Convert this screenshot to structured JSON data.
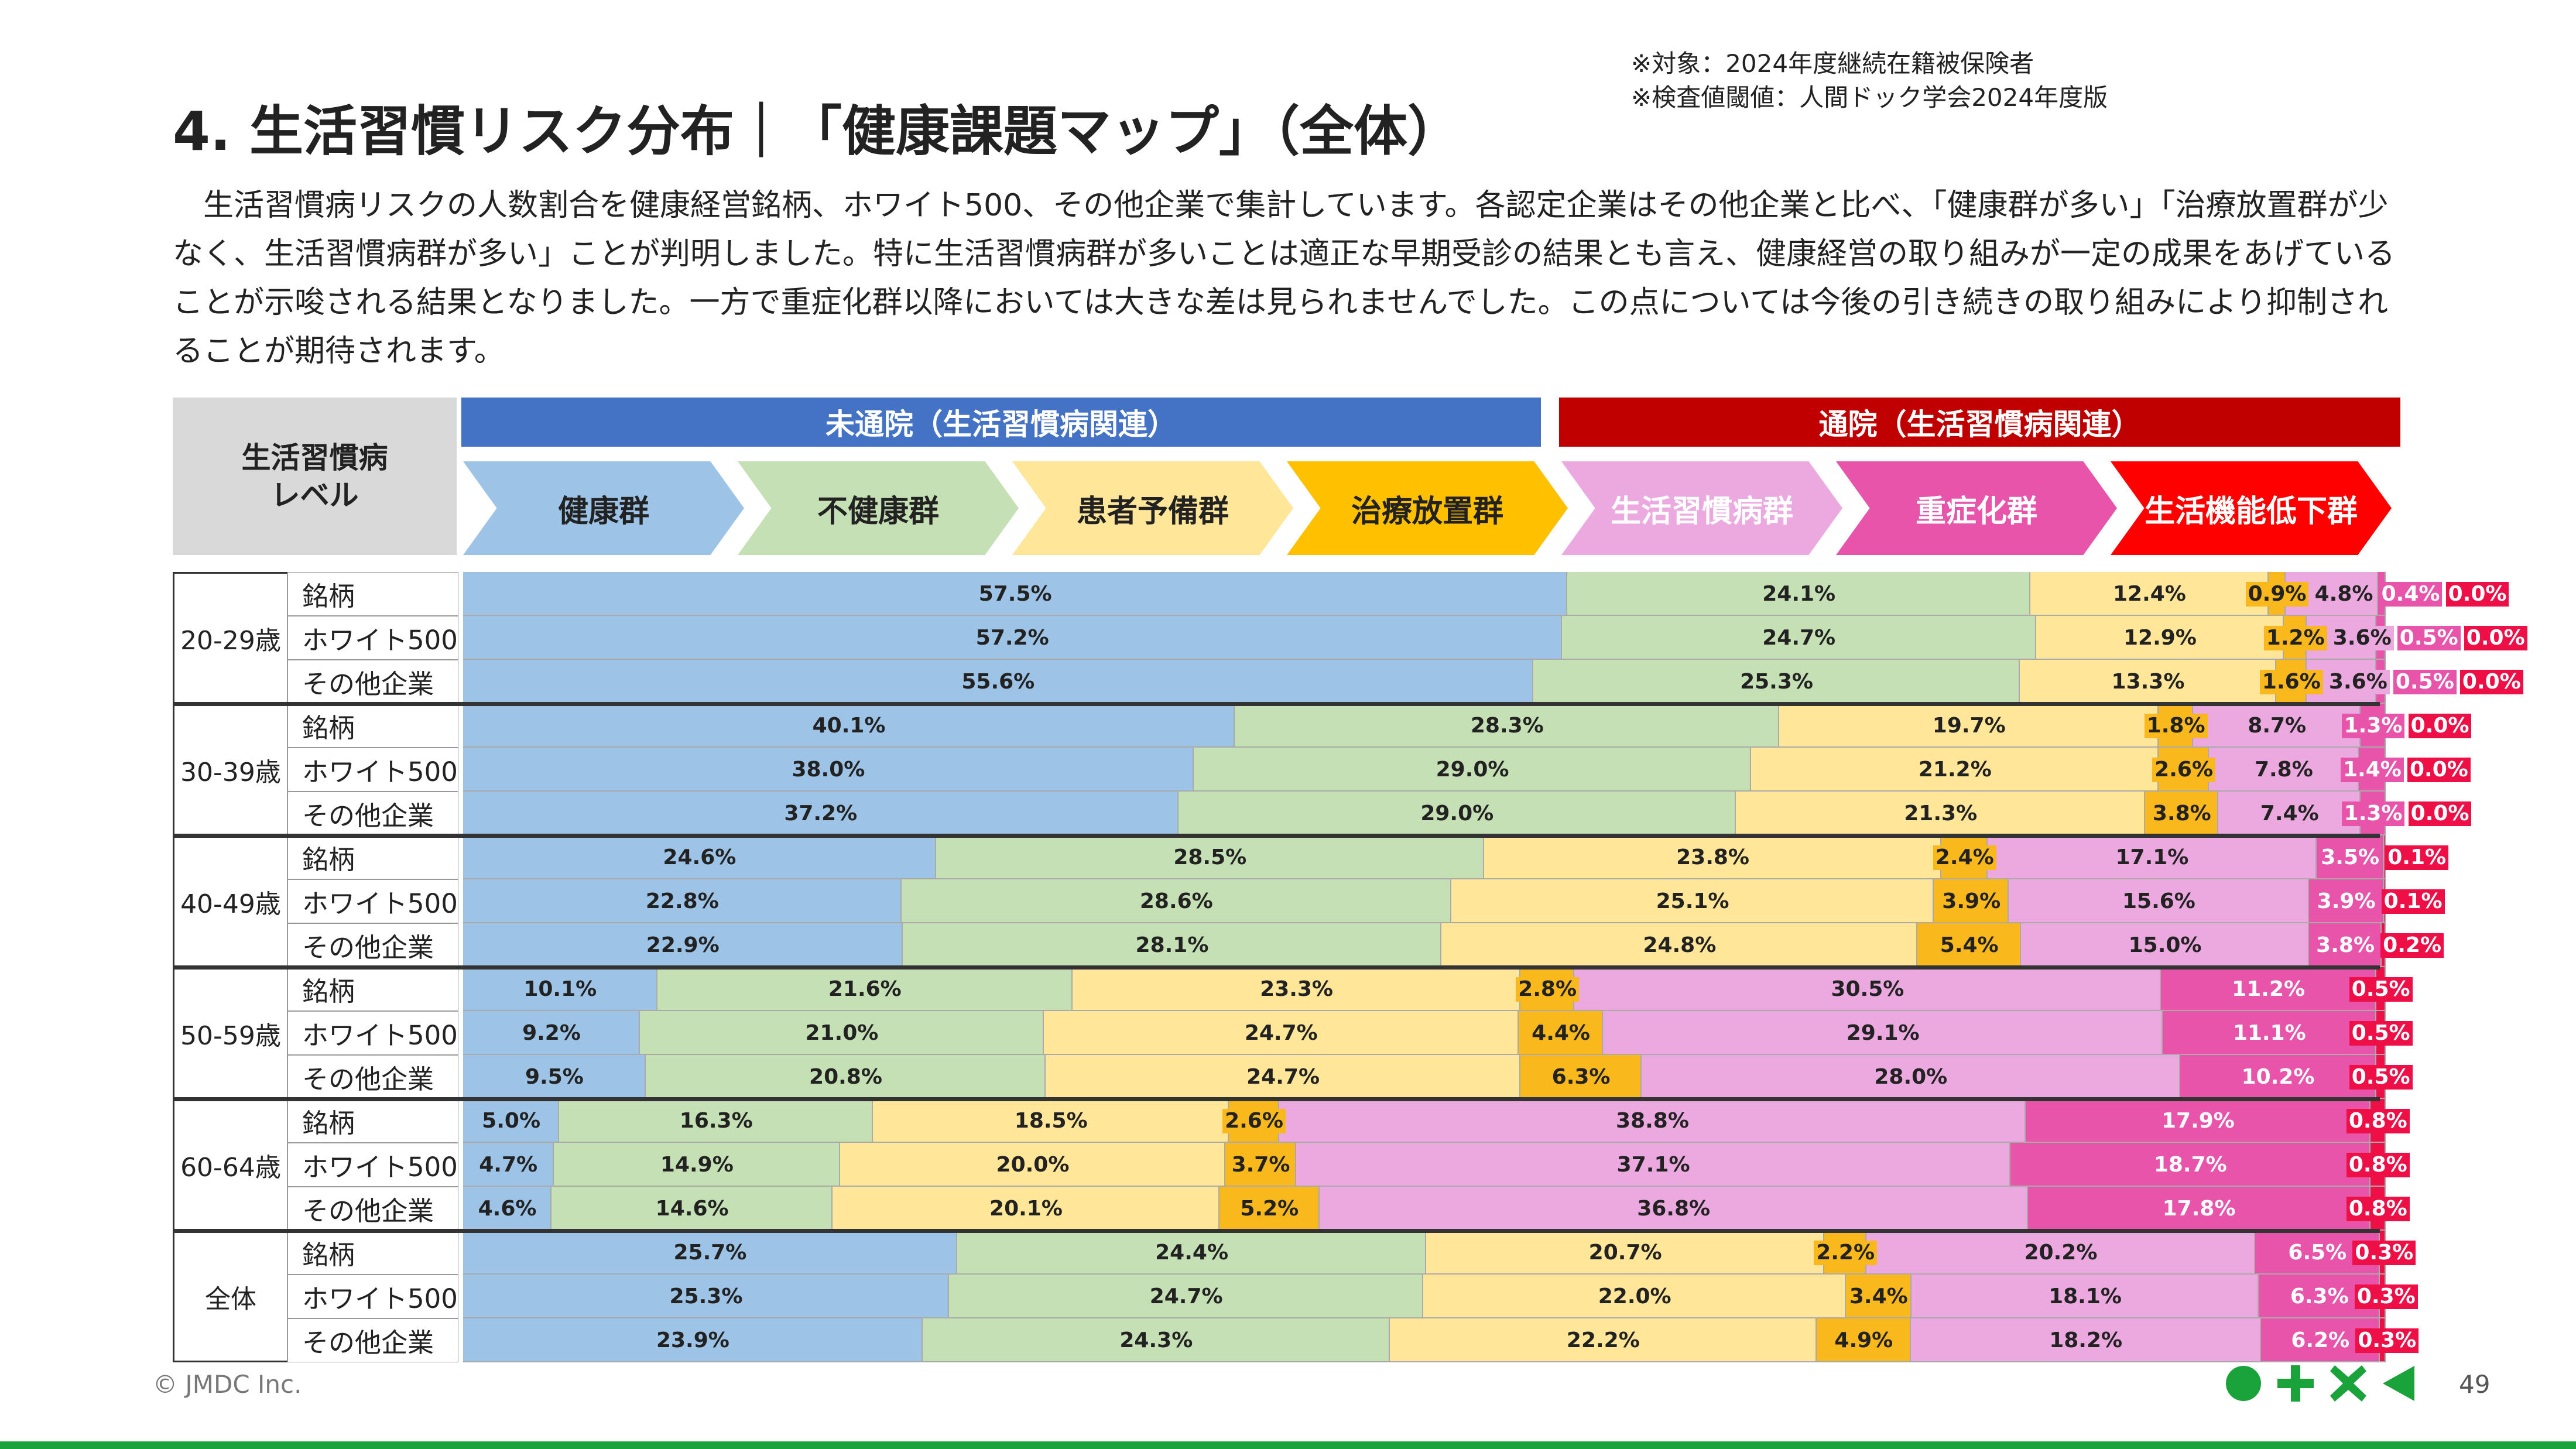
{
  "header": {
    "title": "4. 生活習慣リスク分布｜「健康課題マップ」（全体）",
    "notes": [
      "※対象：2024年度継続在籍被保険者",
      "※検査値閾値：人間ドック学会2024年度版"
    ],
    "paragraph": "　生活習慣病リスクの人数割合を健康経営銘柄、ホワイト500、その他企業で集計しています。各認定企業はその他企業と比べ、「健康群が多い」「治療放置群が少なく、生活習慣病群が多い」ことが判明しました。特に生活習慣病群が多いことは適正な早期受診の結果とも言え、健康経営の取り組みが一定の成果をあげていることが示唆される結果となりました。一方で重症化群以降においては大きな差は見られませんでした。この点については今後の引き続きの取り組みにより抑制されることが期待されます。"
  },
  "chart_data": {
    "type": "bar",
    "stacked": true,
    "orientation": "horizontal",
    "level_label": [
      "生活習慣病",
      "レベル"
    ],
    "group_bands": [
      {
        "label": "未通院（生活習慣病関連）",
        "color": "#4472C4"
      },
      {
        "label": "通院（生活習慣病関連）",
        "color": "#C00000"
      }
    ],
    "categories": [
      "健康群",
      "不健康群",
      "患者予備群",
      "治療放置群",
      "生活習慣病群",
      "重症化群",
      "生活機能低下群"
    ],
    "colors": [
      "#9DC3E6",
      "#C5E0B4",
      "#FFE699",
      "#F9B81C",
      "#EBA9DF",
      "#E754A9",
      "#EE0F47"
    ],
    "header_colors": [
      "#9DC3E6",
      "#C5E0B4",
      "#FFE699",
      "#FFC000",
      "#EBA9DF",
      "#E754A9",
      "#FF0000"
    ],
    "header_text_colors": [
      "#222",
      "#222",
      "#222",
      "#222",
      "#fff",
      "#fff",
      "#fff"
    ],
    "label_colors": [
      "#222",
      "#222",
      "#222",
      "#222",
      "#222",
      "#fff",
      "#fff"
    ],
    "groups": [
      {
        "age": "20-29歳",
        "rows": [
          {
            "name": "銘柄",
            "values": [
              57.5,
              24.1,
              12.4,
              0.9,
              4.8,
              0.4,
              0.0
            ]
          },
          {
            "name": "ホワイト500",
            "values": [
              57.2,
              24.7,
              12.9,
              1.2,
              3.6,
              0.5,
              0.0
            ]
          },
          {
            "name": "その他企業",
            "values": [
              55.6,
              25.3,
              13.3,
              1.6,
              3.6,
              0.5,
              0.0
            ]
          }
        ]
      },
      {
        "age": "30-39歳",
        "rows": [
          {
            "name": "銘柄",
            "values": [
              40.1,
              28.3,
              19.7,
              1.8,
              8.7,
              1.3,
              0.0
            ]
          },
          {
            "name": "ホワイト500",
            "values": [
              38.0,
              29.0,
              21.2,
              2.6,
              7.8,
              1.4,
              0.0
            ]
          },
          {
            "name": "その他企業",
            "values": [
              37.2,
              29.0,
              21.3,
              3.8,
              7.4,
              1.3,
              0.0
            ]
          }
        ]
      },
      {
        "age": "40-49歳",
        "rows": [
          {
            "name": "銘柄",
            "values": [
              24.6,
              28.5,
              23.8,
              2.4,
              17.1,
              3.5,
              0.1
            ]
          },
          {
            "name": "ホワイト500",
            "values": [
              22.8,
              28.6,
              25.1,
              3.9,
              15.6,
              3.9,
              0.1
            ]
          },
          {
            "name": "その他企業",
            "values": [
              22.9,
              28.1,
              24.8,
              5.4,
              15.0,
              3.8,
              0.2
            ]
          }
        ]
      },
      {
        "age": "50-59歳",
        "rows": [
          {
            "name": "銘柄",
            "values": [
              10.1,
              21.6,
              23.3,
              2.8,
              30.5,
              11.2,
              0.5
            ]
          },
          {
            "name": "ホワイト500",
            "values": [
              9.2,
              21.0,
              24.7,
              4.4,
              29.1,
              11.1,
              0.5
            ]
          },
          {
            "name": "その他企業",
            "values": [
              9.5,
              20.8,
              24.7,
              6.3,
              28.0,
              10.2,
              0.5
            ]
          }
        ]
      },
      {
        "age": "60-64歳",
        "rows": [
          {
            "name": "銘柄",
            "values": [
              5.0,
              16.3,
              18.5,
              2.6,
              38.8,
              17.9,
              0.8
            ]
          },
          {
            "name": "ホワイト500",
            "values": [
              4.7,
              14.9,
              20.0,
              3.7,
              37.1,
              18.7,
              0.8
            ]
          },
          {
            "name": "その他企業",
            "values": [
              4.6,
              14.6,
              20.1,
              5.2,
              36.8,
              17.8,
              0.8
            ]
          }
        ]
      },
      {
        "age": "全体",
        "rows": [
          {
            "name": "銘柄",
            "values": [
              25.7,
              24.4,
              20.7,
              2.2,
              20.2,
              6.5,
              0.3
            ]
          },
          {
            "name": "ホワイト500",
            "values": [
              25.3,
              24.7,
              22.0,
              3.4,
              18.1,
              6.3,
              0.3
            ]
          },
          {
            "name": "その他企業",
            "values": [
              23.9,
              24.3,
              22.2,
              4.9,
              18.2,
              6.2,
              0.3
            ]
          }
        ]
      }
    ]
  },
  "footer": {
    "copyright": "© JMDC Inc.",
    "page": "49"
  }
}
